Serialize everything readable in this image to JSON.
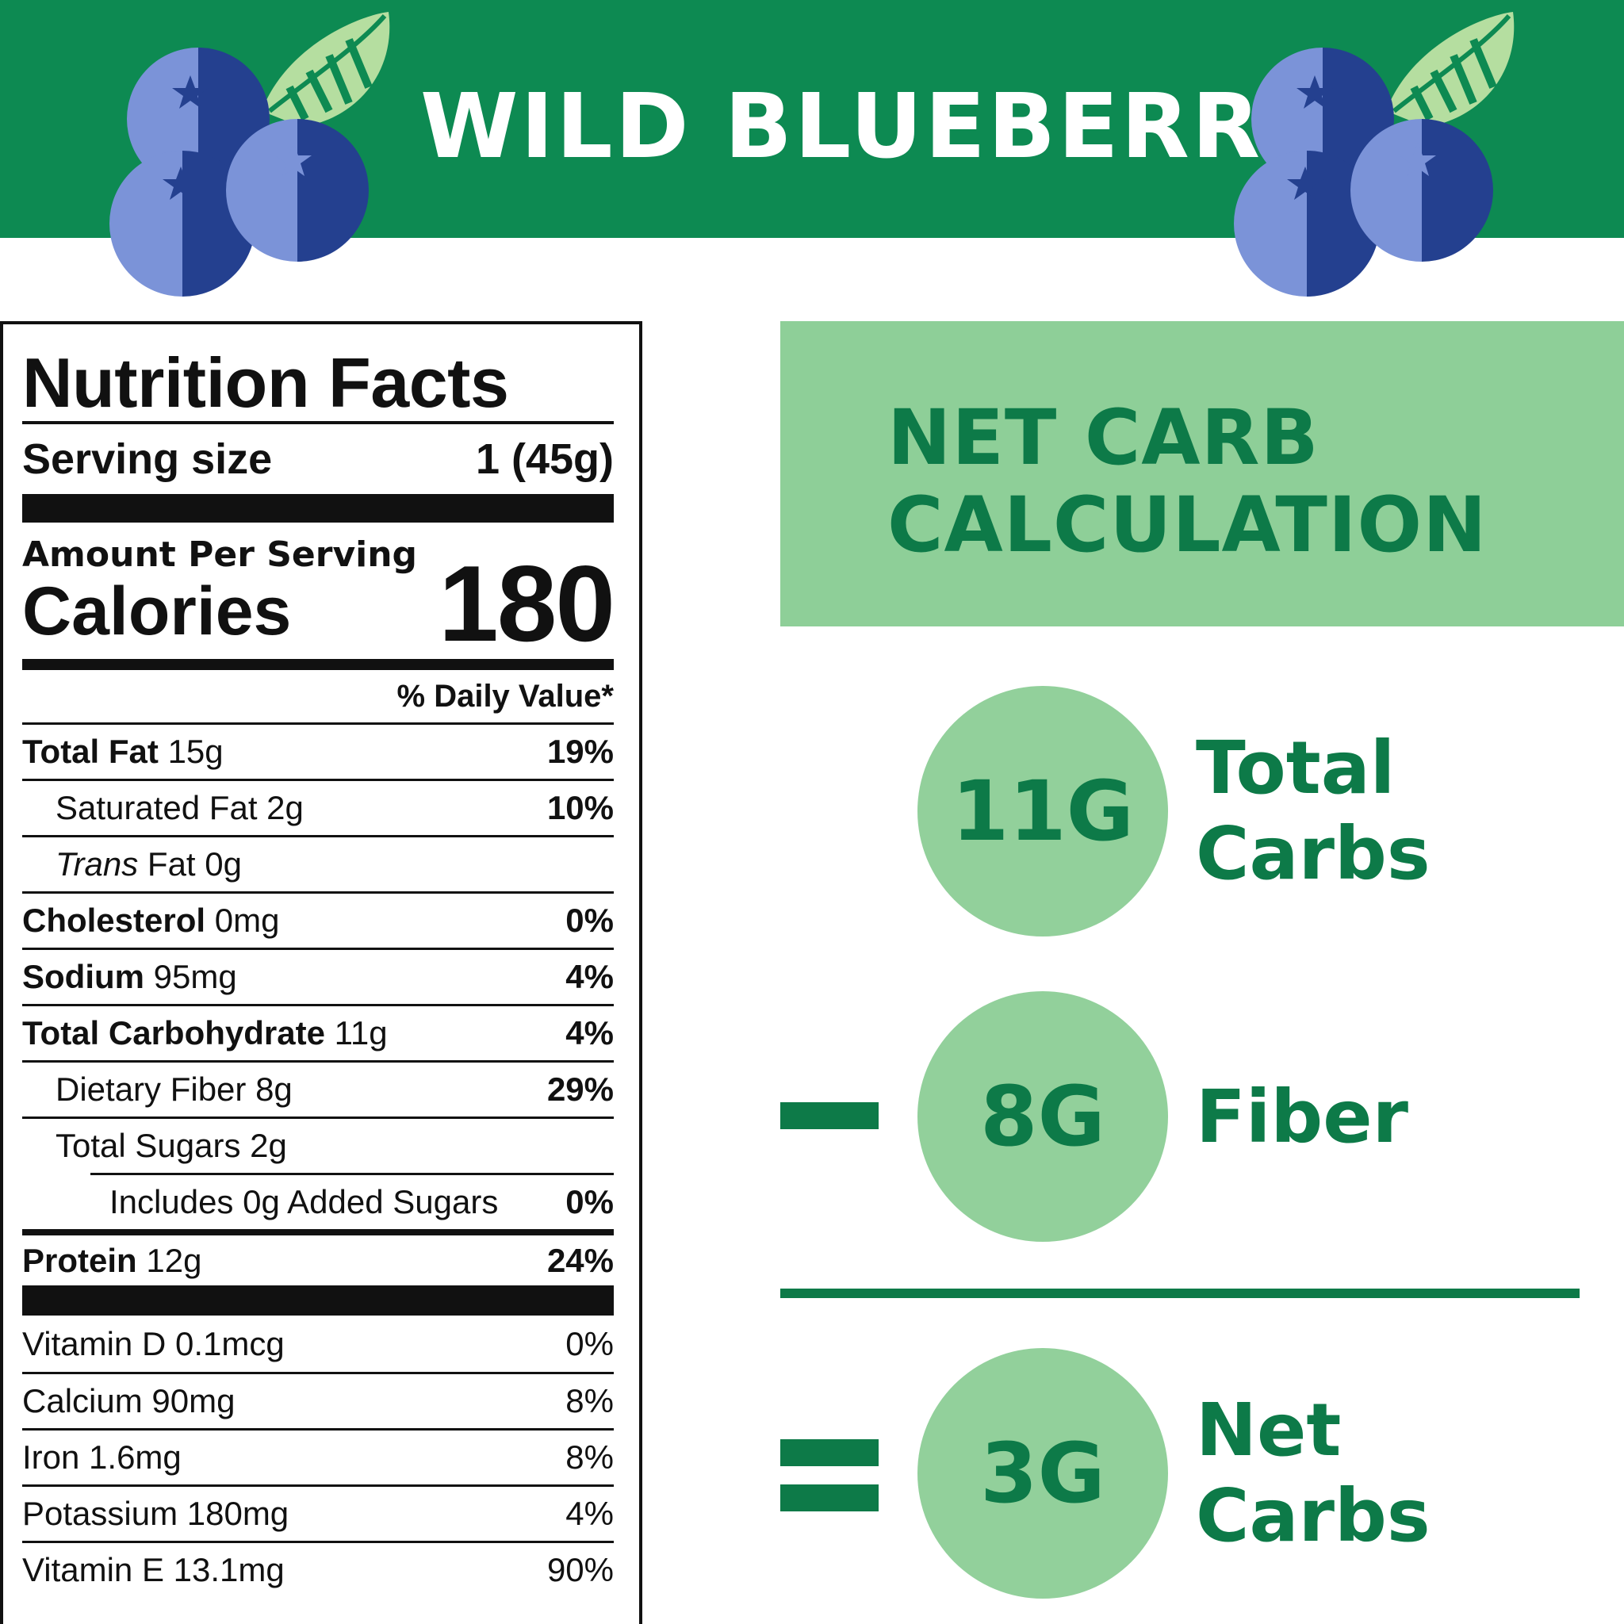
{
  "banner": {
    "title": "WILD BLUEBERRY",
    "bg_color": "#0d8a52",
    "graphics": [
      "blueberry-cluster-icon",
      "blueberry-cluster-icon"
    ]
  },
  "nutrition_facts": {
    "title": "Nutrition Facts",
    "serving_label": "Serving size",
    "serving_value": "1 (45g)",
    "amount_per_serving": "Amount Per Serving",
    "calories_label": "Calories",
    "calories_value": "180",
    "daily_value_header": "% Daily Value*",
    "nutrients": [
      {
        "name": "Total Fat",
        "amount": "15g",
        "dv": "19%"
      },
      {
        "name": "Saturated Fat",
        "amount": "2g",
        "dv": "10%"
      },
      {
        "name": "Trans",
        "suffix": "Fat",
        "amount": "0g",
        "dv": ""
      },
      {
        "name": "Cholesterol",
        "amount": "0mg",
        "dv": "0%"
      },
      {
        "name": "Sodium",
        "amount": "95mg",
        "dv": "4%"
      },
      {
        "name": "Total Carbohydrate",
        "amount": "11g",
        "dv": "4%"
      },
      {
        "name": "Dietary Fiber",
        "amount": "8g",
        "dv": "29%"
      },
      {
        "name": "Total Sugars",
        "amount": "2g",
        "dv": ""
      },
      {
        "name": "Includes 0g Added Sugars",
        "amount": "",
        "dv": "0%"
      },
      {
        "name": "Protein",
        "amount": "12g",
        "dv": "24%"
      }
    ],
    "vitamins": [
      {
        "name": "Vitamin D 0.1mcg",
        "dv": "0%"
      },
      {
        "name": "Calcium 90mg",
        "dv": "8%"
      },
      {
        "name": "Iron 1.6mg",
        "dv": "8%"
      },
      {
        "name": "Potassium 180mg",
        "dv": "4%"
      },
      {
        "name": "Vitamin E 13.1mg",
        "dv": "90%"
      }
    ]
  },
  "net_carb": {
    "title_line1": "NET CARB",
    "title_line2": "CALCULATION",
    "accent_color": "#0d7a48",
    "panel_color": "#8ecf98",
    "steps": [
      {
        "value": "11G",
        "label_line1": "Total",
        "label_line2": "Carbs",
        "operator": ""
      },
      {
        "value": "8G",
        "label_line1": "Fiber",
        "label_line2": "",
        "operator": "minus"
      },
      {
        "value": "3G",
        "label_line1": "Net",
        "label_line2": "Carbs",
        "operator": "equals"
      }
    ]
  }
}
